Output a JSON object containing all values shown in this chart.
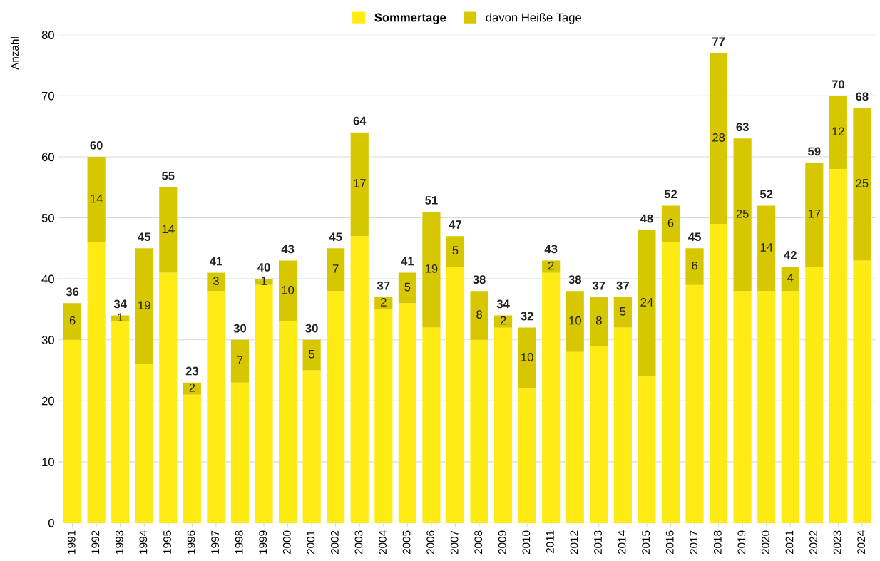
{
  "chart_data": {
    "type": "bar",
    "stacked": true,
    "ylabel": "Anzahl",
    "categories": [
      "1991",
      "1992",
      "1993",
      "1994",
      "1995",
      "1996",
      "1997",
      "1998",
      "1999",
      "2000",
      "2001",
      "2002",
      "2003",
      "2004",
      "2005",
      "2006",
      "2007",
      "2008",
      "2009",
      "2010",
      "2011",
      "2012",
      "2013",
      "2014",
      "2015",
      "2016",
      "2017",
      "2018",
      "2019",
      "2020",
      "2021",
      "2022",
      "2023",
      "2024"
    ],
    "series": [
      {
        "name": "Sommertage",
        "color": "#ffeb14",
        "values": [
          30,
          46,
          33,
          26,
          41,
          21,
          38,
          23,
          39,
          33,
          25,
          38,
          47,
          35,
          36,
          32,
          42,
          30,
          32,
          22,
          41,
          28,
          29,
          32,
          24,
          46,
          39,
          49,
          38,
          38,
          38,
          42,
          58,
          43
        ]
      },
      {
        "name": "davon Heiße Tage",
        "color": "#d6c700",
        "values": [
          6,
          14,
          1,
          19,
          14,
          2,
          3,
          7,
          1,
          10,
          5,
          7,
          17,
          2,
          5,
          19,
          5,
          8,
          2,
          10,
          2,
          10,
          8,
          5,
          24,
          6,
          6,
          28,
          25,
          14,
          4,
          17,
          12,
          25
        ],
        "value_labels": [
          "6",
          "14",
          "1",
          "19",
          "14",
          "2",
          "3",
          "7",
          "1",
          "10",
          "5",
          "7",
          "17",
          "2",
          "5",
          "19",
          "5",
          "8",
          "2",
          "10",
          "2",
          "10",
          "8",
          "5",
          "24",
          "6",
          "6",
          "28",
          "25",
          "14",
          "4",
          "17",
          "12",
          "25"
        ]
      }
    ],
    "totals": [
      "36",
      "60",
      "34",
      "45",
      "55",
      "23",
      "41",
      "30",
      "40",
      "43",
      "30",
      "45",
      "64",
      "37",
      "41",
      "51",
      "47",
      "38",
      "34",
      "32",
      "43",
      "38",
      "37",
      "37",
      "48",
      "52",
      "45",
      "77",
      "63",
      "52",
      "42",
      "59",
      "70",
      "68"
    ],
    "ylim": [
      0,
      80
    ],
    "yticks": [
      0,
      10,
      20,
      30,
      40,
      50,
      60,
      70,
      80
    ],
    "grid": "y",
    "legend": "top"
  }
}
